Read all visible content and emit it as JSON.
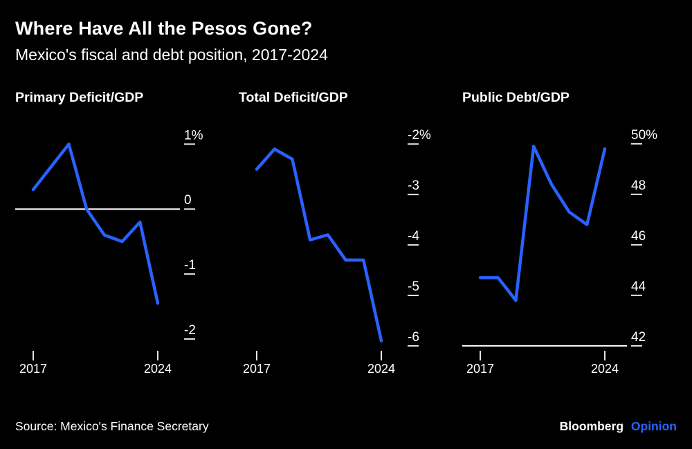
{
  "header": {
    "title": "Where Have All the Pesos Gone?",
    "subtitle": "Mexico's fiscal and debt position, 2017-2024"
  },
  "footer": {
    "source": "Source: Mexico's Finance Secretary",
    "brand": "Bloomberg",
    "brand_suffix": "Opinion"
  },
  "colors": {
    "background": "#000000",
    "text": "#ffffff",
    "line": "#2962ff",
    "axis": "#e6e6e6",
    "baseline": "#ffffff",
    "accent": "#2962ff"
  },
  "chart_data": [
    {
      "type": "line",
      "title": "Primary Deficit/GDP",
      "x": [
        2017,
        2018,
        2019,
        2020,
        2021,
        2022,
        2023,
        2024
      ],
      "values": [
        0.3,
        0.65,
        1.0,
        0.0,
        -0.4,
        -0.5,
        -0.2,
        -1.45
      ],
      "yticks": [
        {
          "value": 1,
          "label": "1%"
        },
        {
          "value": 0,
          "label": "0"
        },
        {
          "value": -1,
          "label": "-1"
        },
        {
          "value": -2,
          "label": "-2"
        }
      ],
      "ylim": [
        -2.16,
        1.11
      ],
      "baseline": 0,
      "xtick_labels": [
        "2017",
        "2024"
      ],
      "grid": false,
      "ylabel_side": "right"
    },
    {
      "type": "line",
      "title": "Total Deficit/GDP",
      "x": [
        2017,
        2018,
        2019,
        2020,
        2021,
        2022,
        2023,
        2024
      ],
      "values": [
        -2.5,
        -2.1,
        -2.3,
        -3.9,
        -3.8,
        -4.3,
        -4.3,
        -5.9
      ],
      "yticks": [
        {
          "value": -2,
          "label": "-2%"
        },
        {
          "value": -3,
          "label": "-3"
        },
        {
          "value": -4,
          "label": "-4"
        },
        {
          "value": -5,
          "label": "-5"
        },
        {
          "value": -6,
          "label": "-6"
        }
      ],
      "ylim": [
        -6.07,
        -1.86
      ],
      "baseline": null,
      "xtick_labels": [
        "2017",
        "2024"
      ],
      "grid": false,
      "ylabel_side": "right"
    },
    {
      "type": "line",
      "title": "Public Debt/GDP",
      "x": [
        2017,
        2018,
        2019,
        2020,
        2021,
        2022,
        2023,
        2024
      ],
      "values": [
        44.7,
        44.7,
        43.8,
        49.9,
        48.4,
        47.3,
        46.8,
        49.8
      ],
      "yticks": [
        {
          "value": 50,
          "label": "50%"
        },
        {
          "value": 48,
          "label": "48"
        },
        {
          "value": 46,
          "label": "46"
        },
        {
          "value": 44,
          "label": "44"
        },
        {
          "value": 42,
          "label": "42"
        }
      ],
      "ylim": [
        41.86,
        50.27
      ],
      "baseline": 42,
      "xtick_labels": [
        "2017",
        "2024"
      ],
      "grid": false,
      "ylabel_side": "right"
    }
  ]
}
